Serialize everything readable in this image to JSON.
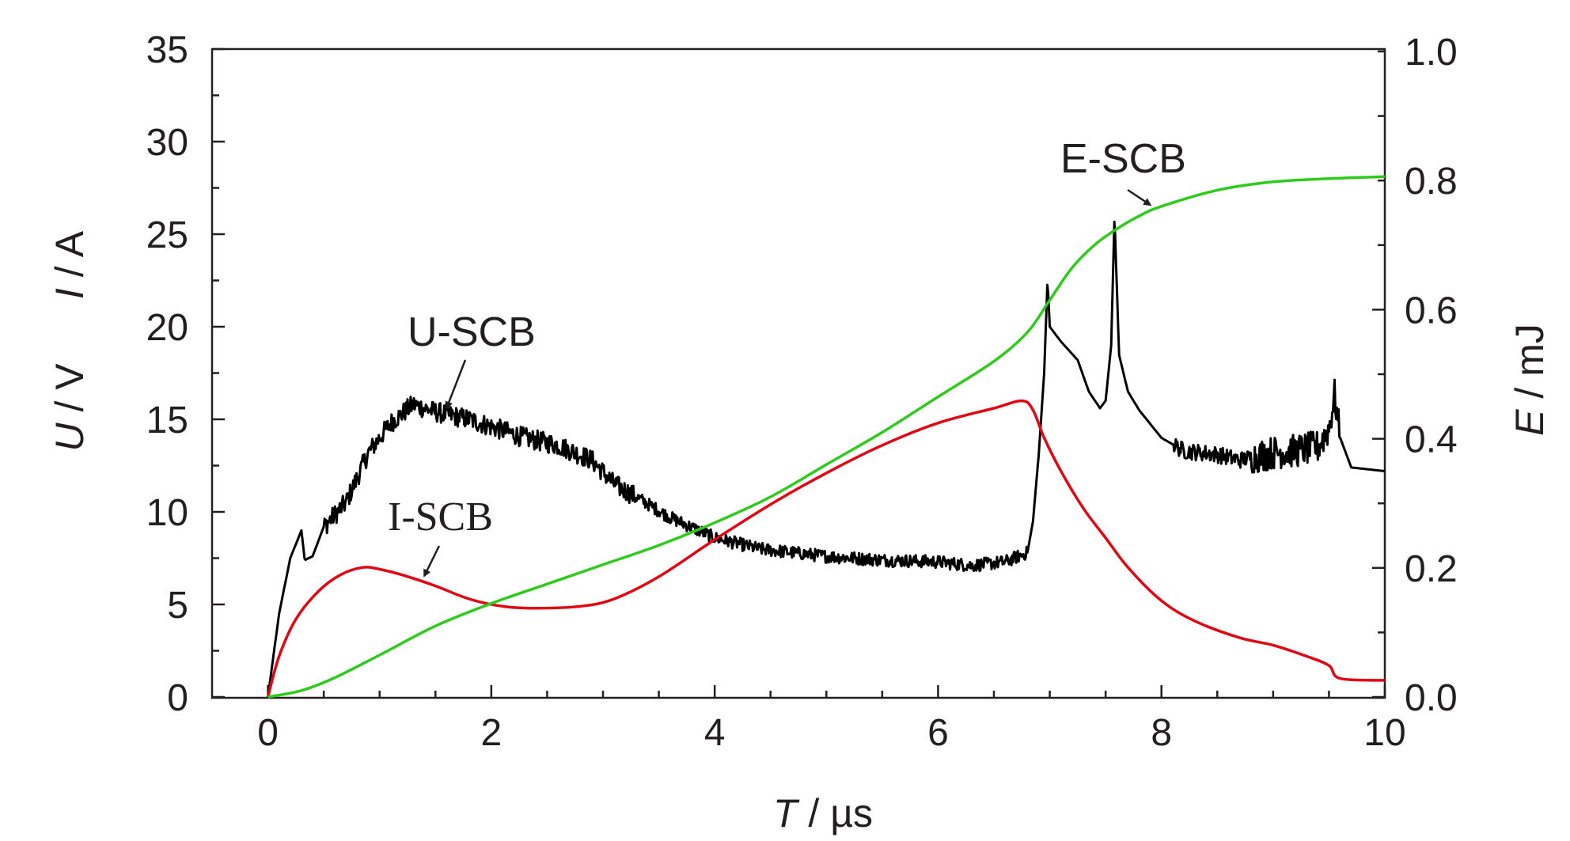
{
  "chart_data": {
    "type": "line",
    "title": "",
    "x_axis": {
      "title_var": "T",
      "title_unit": " / µs",
      "range": [
        -0.5,
        10
      ],
      "ticks": [
        "0",
        "2",
        "4",
        "6",
        "8",
        "10"
      ]
    },
    "y_axis_left": {
      "title_u": "U",
      "title_u_unit": " / V",
      "title_i": "I",
      "title_i_unit": " / A",
      "range": [
        0,
        35
      ],
      "ticks": [
        "0",
        "5",
        "10",
        "15",
        "20",
        "25",
        "30",
        "35"
      ]
    },
    "y_axis_right": {
      "title_var": "E",
      "title_unit": " / mJ",
      "range": [
        0,
        1.0
      ],
      "ticks": [
        "0.0",
        "0.2",
        "0.4",
        "0.6",
        "0.8",
        "1.0"
      ]
    },
    "series": [
      {
        "name": "U-SCB",
        "axis": "left",
        "color": "#000000",
        "noisy": true,
        "points": [
          [
            0,
            0
          ],
          [
            0.1,
            4.5
          ],
          [
            0.2,
            7.5
          ],
          [
            0.3,
            9.0
          ],
          [
            0.33,
            7.4
          ],
          [
            0.4,
            7.6
          ],
          [
            0.5,
            9.2
          ],
          [
            0.7,
            10.5
          ],
          [
            0.9,
            13.2
          ],
          [
            1.1,
            14.8
          ],
          [
            1.3,
            15.8
          ],
          [
            1.5,
            15.4
          ],
          [
            1.8,
            15.0
          ],
          [
            2.0,
            14.6
          ],
          [
            2.3,
            14.0
          ],
          [
            2.6,
            13.6
          ],
          [
            2.9,
            12.8
          ],
          [
            3.1,
            11.5
          ],
          [
            3.3,
            10.8
          ],
          [
            3.6,
            9.7
          ],
          [
            4.0,
            8.6
          ],
          [
            4.4,
            8.0
          ],
          [
            5.0,
            7.6
          ],
          [
            5.5,
            7.4
          ],
          [
            6.0,
            7.3
          ],
          [
            6.3,
            7.1
          ],
          [
            6.6,
            7.3
          ],
          [
            6.8,
            7.8
          ],
          [
            6.85,
            9.5
          ],
          [
            6.9,
            13.0
          ],
          [
            6.95,
            17.5
          ],
          [
            6.98,
            22.5
          ],
          [
            7.0,
            20.0
          ],
          [
            7.1,
            19.2
          ],
          [
            7.25,
            18.2
          ],
          [
            7.35,
            16.5
          ],
          [
            7.45,
            15.6
          ],
          [
            7.5,
            16.0
          ],
          [
            7.55,
            19.0
          ],
          [
            7.58,
            26.0
          ],
          [
            7.62,
            18.5
          ],
          [
            7.7,
            16.5
          ],
          [
            7.8,
            15.5
          ],
          [
            8.0,
            14.0
          ],
          [
            8.2,
            13.3
          ],
          [
            8.5,
            13.1
          ],
          [
            8.7,
            12.8
          ],
          [
            9.0,
            13.2
          ],
          [
            9.2,
            13.3
          ],
          [
            9.4,
            13.5
          ],
          [
            9.5,
            14.5
          ],
          [
            9.55,
            16.3
          ],
          [
            9.6,
            14.0
          ],
          [
            9.7,
            12.4
          ],
          [
            10.0,
            12.2
          ]
        ]
      },
      {
        "name": "I-SCB",
        "axis": "left",
        "color": "#e30613",
        "noisy": false,
        "points": [
          [
            0,
            0
          ],
          [
            0.1,
            2.2
          ],
          [
            0.25,
            4.2
          ],
          [
            0.45,
            5.7
          ],
          [
            0.65,
            6.6
          ],
          [
            0.85,
            7.0
          ],
          [
            1.0,
            6.9
          ],
          [
            1.2,
            6.6
          ],
          [
            1.5,
            6.0
          ],
          [
            1.8,
            5.3
          ],
          [
            2.1,
            4.9
          ],
          [
            2.4,
            4.8
          ],
          [
            2.8,
            4.9
          ],
          [
            3.1,
            5.3
          ],
          [
            3.5,
            6.5
          ],
          [
            4.0,
            8.5
          ],
          [
            4.5,
            10.4
          ],
          [
            5.0,
            12.1
          ],
          [
            5.5,
            13.6
          ],
          [
            6.0,
            14.8
          ],
          [
            6.5,
            15.6
          ],
          [
            6.75,
            16.0
          ],
          [
            6.85,
            15.5
          ],
          [
            6.95,
            14.0
          ],
          [
            7.1,
            12.2
          ],
          [
            7.3,
            10.2
          ],
          [
            7.5,
            8.6
          ],
          [
            7.7,
            7.0
          ],
          [
            8.0,
            5.2
          ],
          [
            8.3,
            4.1
          ],
          [
            8.7,
            3.2
          ],
          [
            9.0,
            2.8
          ],
          [
            9.3,
            2.2
          ],
          [
            9.5,
            1.7
          ],
          [
            9.6,
            1.0
          ],
          [
            10.0,
            0.9
          ]
        ]
      },
      {
        "name": "E-SCB",
        "axis": "right",
        "color": "#2ecc1a",
        "noisy": false,
        "points": [
          [
            0,
            0.0
          ],
          [
            0.3,
            0.01
          ],
          [
            0.6,
            0.03
          ],
          [
            1.0,
            0.065
          ],
          [
            1.5,
            0.11
          ],
          [
            2.0,
            0.145
          ],
          [
            2.5,
            0.175
          ],
          [
            3.0,
            0.205
          ],
          [
            3.5,
            0.235
          ],
          [
            4.0,
            0.27
          ],
          [
            4.5,
            0.31
          ],
          [
            5.0,
            0.36
          ],
          [
            5.5,
            0.41
          ],
          [
            6.0,
            0.465
          ],
          [
            6.5,
            0.52
          ],
          [
            6.8,
            0.565
          ],
          [
            7.0,
            0.615
          ],
          [
            7.2,
            0.665
          ],
          [
            7.4,
            0.7
          ],
          [
            7.6,
            0.725
          ],
          [
            7.8,
            0.745
          ],
          [
            8.0,
            0.76
          ],
          [
            8.5,
            0.785
          ],
          [
            9.0,
            0.798
          ],
          [
            9.5,
            0.803
          ],
          [
            10.0,
            0.806
          ]
        ]
      }
    ],
    "annotations": [
      {
        "label": "U-SCB",
        "series": "U-SCB"
      },
      {
        "label": "I-SCB",
        "series": "I-SCB"
      },
      {
        "label": "E-SCB",
        "series": "E-SCB"
      }
    ]
  }
}
